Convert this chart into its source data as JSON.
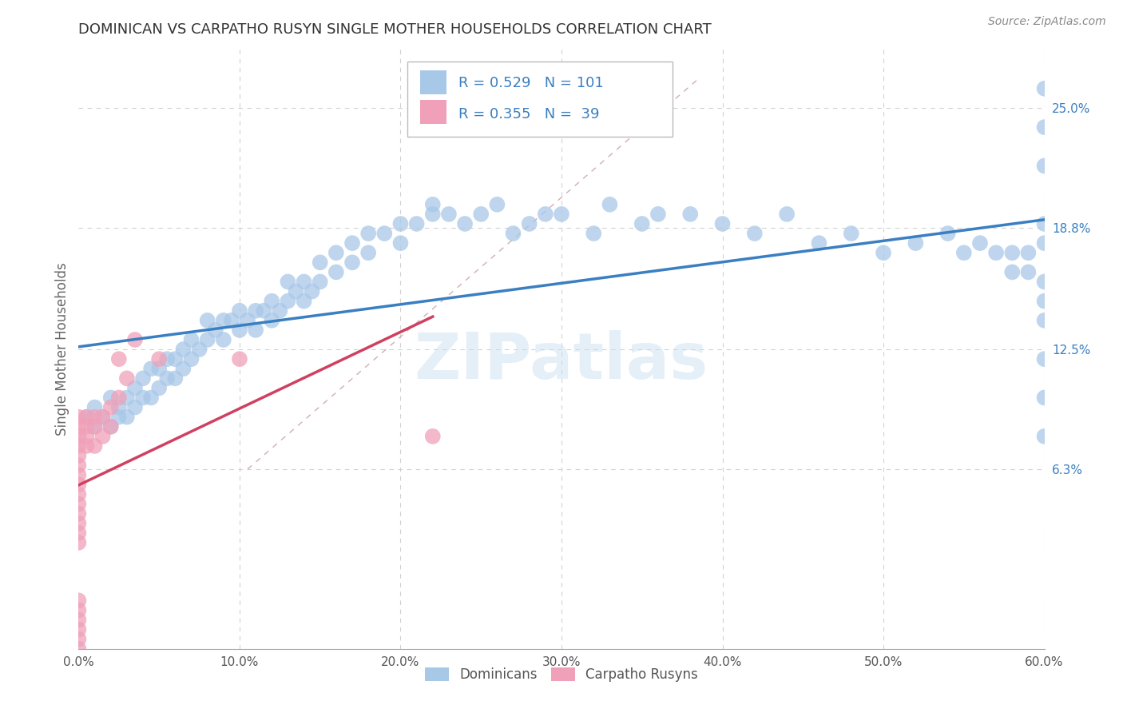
{
  "title": "DOMINICAN VS CARPATHO RUSYN SINGLE MOTHER HOUSEHOLDS CORRELATION CHART",
  "source": "Source: ZipAtlas.com",
  "ylabel": "Single Mother Households",
  "watermark": "ZIPatlas",
  "xlim": [
    0.0,
    0.6
  ],
  "ylim": [
    -0.03,
    0.28
  ],
  "xticklabels": [
    "0.0%",
    "10.0%",
    "20.0%",
    "30.0%",
    "40.0%",
    "50.0%",
    "60.0%"
  ],
  "xticks": [
    0.0,
    0.1,
    0.2,
    0.3,
    0.4,
    0.5,
    0.6
  ],
  "right_yticks": [
    0.063,
    0.125,
    0.188,
    0.25
  ],
  "right_yticklabels": [
    "6.3%",
    "12.5%",
    "18.8%",
    "25.0%"
  ],
  "legend_label1": "Dominicans",
  "legend_label2": "Carpatho Rusyns",
  "color_blue": "#a8c8e8",
  "color_blue_line": "#3a7fc1",
  "color_pink": "#f0a0b8",
  "color_pink_line": "#d04060",
  "color_legend_text": "#3a7fc1",
  "color_grid": "#cccccc",
  "title_color": "#333333",
  "blue_x": [
    0.005,
    0.01,
    0.01,
    0.015,
    0.02,
    0.02,
    0.025,
    0.025,
    0.03,
    0.03,
    0.035,
    0.035,
    0.04,
    0.04,
    0.045,
    0.045,
    0.05,
    0.05,
    0.055,
    0.055,
    0.06,
    0.06,
    0.065,
    0.065,
    0.07,
    0.07,
    0.075,
    0.08,
    0.08,
    0.085,
    0.09,
    0.09,
    0.095,
    0.1,
    0.1,
    0.105,
    0.11,
    0.11,
    0.115,
    0.12,
    0.12,
    0.125,
    0.13,
    0.13,
    0.135,
    0.14,
    0.14,
    0.145,
    0.15,
    0.15,
    0.16,
    0.16,
    0.17,
    0.17,
    0.18,
    0.18,
    0.19,
    0.2,
    0.2,
    0.21,
    0.22,
    0.22,
    0.23,
    0.24,
    0.25,
    0.26,
    0.27,
    0.28,
    0.29,
    0.3,
    0.32,
    0.33,
    0.35,
    0.36,
    0.38,
    0.4,
    0.42,
    0.44,
    0.46,
    0.48,
    0.5,
    0.52,
    0.54,
    0.55,
    0.56,
    0.57,
    0.58,
    0.58,
    0.59,
    0.59,
    0.6,
    0.6,
    0.6,
    0.6,
    0.6,
    0.6,
    0.6,
    0.6,
    0.6,
    0.6,
    0.6
  ],
  "blue_y": [
    0.09,
    0.085,
    0.095,
    0.09,
    0.085,
    0.1,
    0.09,
    0.095,
    0.09,
    0.1,
    0.095,
    0.105,
    0.1,
    0.11,
    0.1,
    0.115,
    0.105,
    0.115,
    0.11,
    0.12,
    0.11,
    0.12,
    0.115,
    0.125,
    0.12,
    0.13,
    0.125,
    0.13,
    0.14,
    0.135,
    0.13,
    0.14,
    0.14,
    0.135,
    0.145,
    0.14,
    0.135,
    0.145,
    0.145,
    0.14,
    0.15,
    0.145,
    0.15,
    0.16,
    0.155,
    0.15,
    0.16,
    0.155,
    0.16,
    0.17,
    0.165,
    0.175,
    0.17,
    0.18,
    0.175,
    0.185,
    0.185,
    0.18,
    0.19,
    0.19,
    0.195,
    0.2,
    0.195,
    0.19,
    0.195,
    0.2,
    0.185,
    0.19,
    0.195,
    0.195,
    0.185,
    0.2,
    0.19,
    0.195,
    0.195,
    0.19,
    0.185,
    0.195,
    0.18,
    0.185,
    0.175,
    0.18,
    0.185,
    0.175,
    0.18,
    0.175,
    0.165,
    0.175,
    0.175,
    0.165,
    0.22,
    0.24,
    0.26,
    0.12,
    0.14,
    0.1,
    0.08,
    0.15,
    0.16,
    0.18,
    0.19
  ],
  "pink_x": [
    0.0,
    0.0,
    0.0,
    0.0,
    0.0,
    0.0,
    0.0,
    0.0,
    0.0,
    0.0,
    0.0,
    0.0,
    0.0,
    0.0,
    0.0,
    0.0,
    0.005,
    0.005,
    0.005,
    0.005,
    0.01,
    0.01,
    0.01,
    0.015,
    0.015,
    0.02,
    0.02,
    0.025,
    0.025,
    0.03,
    0.035,
    0.05,
    0.1,
    0.22,
    0.0,
    0.0,
    0.0,
    0.0,
    0.0
  ],
  "pink_y": [
    0.09,
    0.085,
    0.08,
    0.075,
    0.07,
    0.065,
    0.06,
    0.055,
    0.05,
    0.045,
    0.04,
    0.035,
    0.03,
    -0.005,
    -0.01,
    0.025,
    0.09,
    0.085,
    0.08,
    0.075,
    0.09,
    0.085,
    0.075,
    0.09,
    0.08,
    0.085,
    0.095,
    0.1,
    0.12,
    0.11,
    0.13,
    0.12,
    0.12,
    0.08,
    -0.015,
    -0.02,
    -0.025,
    -0.03,
    -0.035
  ]
}
